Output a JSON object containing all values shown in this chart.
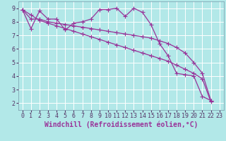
{
  "title": "",
  "xlabel": "Windchill (Refroidissement éolien,°C)",
  "ylabel": "",
  "bg_color": "#b2e8e8",
  "line_color": "#993399",
  "grid_color": "#ffffff",
  "xlim": [
    -0.5,
    23.5
  ],
  "ylim": [
    1.5,
    9.5
  ],
  "yticks": [
    2,
    3,
    4,
    5,
    6,
    7,
    8,
    9
  ],
  "xticks": [
    0,
    1,
    2,
    3,
    4,
    5,
    6,
    7,
    8,
    9,
    10,
    11,
    12,
    13,
    14,
    15,
    16,
    17,
    18,
    19,
    20,
    21,
    22,
    23
  ],
  "series": [
    [
      8.9,
      7.5,
      8.8,
      8.2,
      8.2,
      7.4,
      7.9,
      8.0,
      8.2,
      8.9,
      8.9,
      9.0,
      8.4,
      9.0,
      8.7,
      7.8,
      6.4,
      5.5,
      4.2,
      4.1,
      4.0,
      2.5,
      2.2
    ],
    [
      8.9,
      8.5,
      8.1,
      7.9,
      7.7,
      7.5,
      7.3,
      7.1,
      6.9,
      6.7,
      6.5,
      6.3,
      6.1,
      5.9,
      5.7,
      5.5,
      5.3,
      5.1,
      4.8,
      4.5,
      4.2,
      3.8,
      2.1
    ],
    [
      8.9,
      8.2,
      8.2,
      8.0,
      7.9,
      7.8,
      7.7,
      7.6,
      7.5,
      7.4,
      7.3,
      7.2,
      7.1,
      7.0,
      6.9,
      6.8,
      6.6,
      6.4,
      6.1,
      5.7,
      5.0,
      4.2,
      2.2
    ]
  ],
  "marker": "+",
  "markersize": 4,
  "linewidth": 0.9,
  "font_family": "monospace",
  "xlabel_fontsize": 7,
  "tick_fontsize": 6
}
